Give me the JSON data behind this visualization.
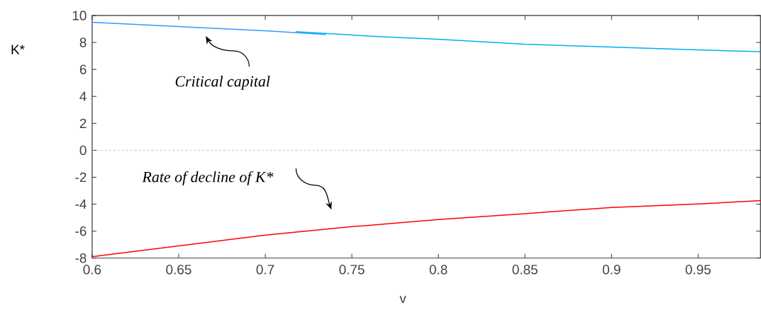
{
  "chart_data": {
    "type": "line",
    "xlabel": "v",
    "ylabel": "K*",
    "xlim": [
      0.6,
      0.986
    ],
    "ylim": [
      -8,
      10
    ],
    "xticks": [
      0.6,
      0.65,
      0.7,
      0.75,
      0.8,
      0.85,
      0.9,
      0.95
    ],
    "yticks": [
      -8,
      -6,
      -4,
      -2,
      0,
      2,
      4,
      6,
      8,
      10
    ],
    "marker": "none",
    "line_style": "solid",
    "series": [
      {
        "color": "#3399ff",
        "x": [
          0.6,
          0.65,
          0.7,
          0.735
        ],
        "values": [
          9.5,
          9.18,
          8.87,
          8.6
        ]
      },
      {
        "color": "#00b0f0",
        "x": [
          0.7176,
          0.764,
          0.8,
          0.85,
          0.9,
          0.95,
          0.986
        ],
        "values": [
          8.8,
          8.45,
          8.24,
          7.87,
          7.66,
          7.45,
          7.32
        ]
      },
      {
        "color": "#ff0000",
        "x": [
          0.6,
          0.65,
          0.7,
          0.75,
          0.8,
          0.85,
          0.9,
          0.95,
          0.986
        ],
        "values": [
          -7.9,
          -7.1,
          -6.3,
          -5.67,
          -5.14,
          -4.7,
          -4.25,
          -3.99,
          -3.73
        ]
      }
    ],
    "ref_lines": [
      {
        "axis": "y",
        "value": 0,
        "color": "#999999",
        "line_style": "dashed"
      }
    ],
    "annotations": [
      "Critical capital",
      "Rate of decline of K*"
    ]
  }
}
